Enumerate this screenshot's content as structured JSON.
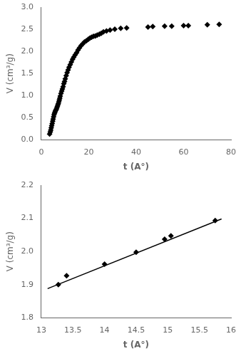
{
  "chart_data": [
    {
      "type": "scatter",
      "xlabel": "t (A°)",
      "ylabel": "V (cm³/g)",
      "x": [
        3.5,
        3.8,
        4.0,
        4.2,
        4.4,
        4.6,
        4.8,
        5.0,
        5.2,
        5.4,
        5.6,
        5.8,
        6.0,
        6.2,
        6.4,
        6.6,
        6.8,
        7.0,
        7.2,
        7.4,
        7.6,
        7.8,
        8.0,
        8.3,
        8.6,
        8.9,
        9.2,
        9.5,
        9.8,
        10.1,
        10.5,
        10.9,
        11.3,
        11.7,
        12.2,
        12.7,
        13.2,
        13.7,
        14.3,
        14.9,
        15.5,
        16.1,
        16.8,
        17.5,
        18.2,
        19.0,
        19.8,
        20.5,
        21.2,
        22.0,
        22.8,
        23.6,
        24.5,
        25.3,
        26.2,
        27.5,
        29.0,
        31.0,
        33.5,
        36.0,
        45.0,
        47.0,
        52.0,
        55.0,
        60.0,
        62.0,
        70.0,
        75.0
      ],
      "values": [
        0.13,
        0.18,
        0.22,
        0.27,
        0.32,
        0.37,
        0.42,
        0.47,
        0.52,
        0.57,
        0.6,
        0.63,
        0.66,
        0.68,
        0.7,
        0.73,
        0.76,
        0.79,
        0.82,
        0.86,
        0.9,
        0.94,
        0.99,
        1.05,
        1.1,
        1.15,
        1.2,
        1.27,
        1.32,
        1.38,
        1.45,
        1.52,
        1.58,
        1.64,
        1.7,
        1.76,
        1.82,
        1.87,
        1.92,
        1.97,
        2.03,
        2.08,
        2.13,
        2.17,
        2.21,
        2.24,
        2.27,
        2.3,
        2.32,
        2.34,
        2.35,
        2.37,
        2.39,
        2.41,
        2.44,
        2.46,
        2.48,
        2.5,
        2.52,
        2.53,
        2.55,
        2.56,
        2.57,
        2.57,
        2.58,
        2.58,
        2.6,
        2.61
      ],
      "color": "black",
      "marker": "diamond",
      "xlim": [
        0,
        80
      ],
      "ylim": [
        0,
        3
      ],
      "xticks": [
        0,
        20,
        40,
        60,
        80
      ],
      "yticks": [
        {
          "value": 0,
          "label": "0.0"
        },
        0.5,
        {
          "value": 1.0,
          "label": "1.0"
        },
        1.5,
        {
          "value": 2.0,
          "label": "2.0"
        },
        2.5,
        {
          "value": 3.0,
          "label": "3.0"
        }
      ],
      "grid": false
    },
    {
      "type": "scatter",
      "xlabel": "t (A°)",
      "ylabel": "V (cm³/g)",
      "series": [
        {
          "type": "line",
          "color": "black",
          "line_style": "solid",
          "x": [
            13.1,
            15.85
          ],
          "values": [
            1.888,
            2.098
          ]
        },
        {
          "type": "scatter",
          "color": "black",
          "marker": "diamond",
          "x": [
            13.27,
            13.4,
            14.0,
            14.5,
            14.95,
            15.05,
            15.75
          ],
          "values": [
            1.9,
            1.927,
            1.962,
            1.998,
            2.037,
            2.047,
            2.093
          ]
        }
      ],
      "xlim": [
        13.0,
        16.0
      ],
      "ylim": [
        1.8,
        2.2
      ],
      "xticks": [
        13,
        13.5,
        14,
        14.5,
        15,
        15.5,
        16
      ],
      "yticks": [
        1.8,
        1.9,
        {
          "value": 2.0,
          "label": "2.0"
        },
        2.1,
        2.2
      ],
      "grid": false
    }
  ]
}
